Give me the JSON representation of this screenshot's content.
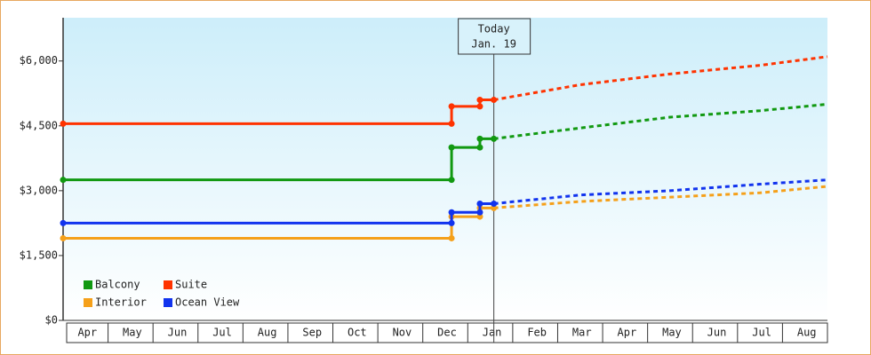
{
  "chart_data": {
    "type": "step-line",
    "x": [
      0,
      8.64,
      8.64,
      9.27,
      9.27,
      9.58
    ],
    "forecast_x": [
      9.58,
      11.5,
      13.5,
      15.5,
      17
    ],
    "xlim": [
      0,
      17
    ],
    "categories": [
      "Apr",
      "May",
      "Jun",
      "Jul",
      "Aug",
      "Sep",
      "Oct",
      "Nov",
      "Dec",
      "Jan",
      "Feb",
      "Mar",
      "Apr",
      "May",
      "Jun",
      "Jul",
      "Aug"
    ],
    "ylim": [
      0,
      7000
    ],
    "yticks": [
      {
        "value": 0,
        "label": "$0"
      },
      {
        "value": 1500,
        "label": "$1,500"
      },
      {
        "value": 3000,
        "label": "$3,000"
      },
      {
        "value": 4500,
        "label": "$4,500"
      },
      {
        "value": 6000,
        "label": "$6,000"
      }
    ],
    "series": [
      {
        "name": "Balcony",
        "color": "#119911",
        "values": [
          3250,
          3250,
          4000,
          4000,
          4200,
          4200
        ],
        "forecast": [
          4200,
          4450,
          4700,
          4850,
          5000
        ]
      },
      {
        "name": "Suite",
        "color": "#ff3300",
        "values": [
          4550,
          4550,
          4950,
          4950,
          5100,
          5100
        ],
        "forecast": [
          5100,
          5450,
          5700,
          5900,
          6100
        ]
      },
      {
        "name": "Interior",
        "color": "#f5a01a",
        "values": [
          1900,
          1900,
          2400,
          2400,
          2600,
          2600
        ],
        "forecast": [
          2600,
          2750,
          2850,
          2950,
          3100
        ]
      },
      {
        "name": "Ocean View",
        "color": "#1133ee",
        "values": [
          2250,
          2250,
          2500,
          2500,
          2700,
          2700
        ],
        "forecast": [
          2700,
          2900,
          3000,
          3150,
          3250
        ]
      }
    ],
    "annotation": {
      "x": 9.58,
      "lines": [
        "Today",
        "Jan. 19"
      ]
    }
  }
}
